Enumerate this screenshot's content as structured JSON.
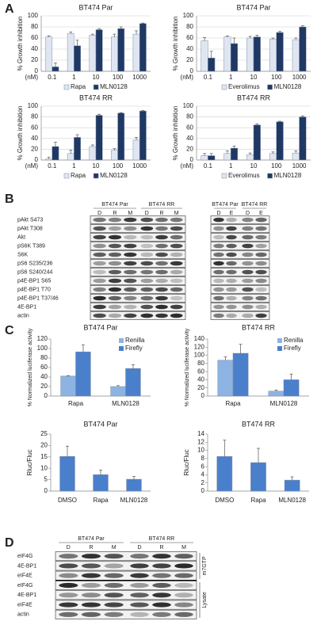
{
  "panel_labels": [
    "A",
    "B",
    "C",
    "D"
  ],
  "chart_data": [
    {
      "type": "bar",
      "title": "BT474 Par",
      "y_label": "% Growth inhibition",
      "x_unit_label": "(nM)",
      "categories": [
        "0.1",
        "1",
        "10",
        "100",
        "1000"
      ],
      "ylim": [
        0,
        100
      ],
      "yticks": [
        0,
        20,
        40,
        60,
        80,
        100
      ],
      "grid": true,
      "legend": "bottom",
      "series": [
        {
          "name": "Rapa",
          "color": "#dfe6f2",
          "values": [
            62,
            68,
            65,
            62,
            67
          ],
          "errors": [
            2,
            3,
            2,
            5,
            6
          ]
        },
        {
          "name": "MLN0128",
          "color": "#1f3864",
          "values": [
            8,
            46,
            75,
            77,
            86
          ],
          "errors": [
            7,
            10,
            2,
            3,
            1
          ]
        }
      ]
    },
    {
      "type": "bar",
      "title": "BT474 Par",
      "y_label": "% Growth inhibition",
      "x_unit_label": "(nM)",
      "categories": [
        "0.1",
        "1",
        "10",
        "100",
        "1000"
      ],
      "ylim": [
        0,
        100
      ],
      "yticks": [
        0,
        20,
        40,
        60,
        80,
        100
      ],
      "grid": true,
      "legend": "bottom",
      "series": [
        {
          "name": "Everolimus",
          "color": "#dfe6f2",
          "values": [
            55,
            62,
            60,
            58,
            57
          ],
          "errors": [
            6,
            2,
            3,
            2,
            3
          ]
        },
        {
          "name": "MLN0128",
          "color": "#1f3864",
          "values": [
            24,
            50,
            62,
            70,
            80
          ],
          "errors": [
            12,
            10,
            3,
            2,
            2
          ]
        }
      ]
    },
    {
      "type": "bar",
      "title": "BT474 RR",
      "y_label": "% Growth inhibition",
      "x_unit_label": "(nM)",
      "categories": [
        "0.1",
        "1",
        "10",
        "100",
        "1000"
      ],
      "ylim": [
        0,
        100
      ],
      "yticks": [
        0,
        20,
        40,
        60,
        80,
        100
      ],
      "grid": true,
      "legend": "bottom",
      "series": [
        {
          "name": "Rapa",
          "color": "#dfe6f2",
          "values": [
            2,
            12,
            25,
            18,
            37
          ],
          "errors": [
            3,
            6,
            3,
            3,
            5
          ]
        },
        {
          "name": "MLN0128",
          "color": "#1f3864",
          "values": [
            25,
            42,
            83,
            87,
            91
          ],
          "errors": [
            8,
            5,
            2,
            1,
            1
          ]
        }
      ]
    },
    {
      "type": "bar",
      "title": "BT474 RR",
      "y_label": "% Growth inhibition",
      "x_unit_label": "(nM)",
      "categories": [
        "0.1",
        "1",
        "10",
        "100",
        "1000"
      ],
      "ylim": [
        0,
        100
      ],
      "yticks": [
        0,
        20,
        40,
        60,
        80,
        100
      ],
      "grid": true,
      "legend": "bottom",
      "series": [
        {
          "name": "Everolimus",
          "color": "#dfe6f2",
          "values": [
            8,
            12,
            10,
            12,
            13
          ],
          "errors": [
            4,
            5,
            3,
            3,
            4
          ]
        },
        {
          "name": "MLN0128",
          "color": "#1f3864",
          "values": [
            8,
            22,
            65,
            71,
            80
          ],
          "errors": [
            4,
            4,
            2,
            1,
            2
          ]
        }
      ]
    },
    {
      "type": "bar",
      "title": "BT474 Par",
      "y_label": "% Normalized luciferase activity",
      "categories": [
        "Rapa",
        "MLN0128"
      ],
      "ylim": [
        0,
        120
      ],
      "yticks": [
        0,
        20,
        40,
        60,
        80,
        100,
        120
      ],
      "grid": false,
      "legend": "upper right",
      "series": [
        {
          "name": "Renilla",
          "color": "#8db3e2",
          "values": [
            42,
            20
          ],
          "errors": [
            1,
            2
          ]
        },
        {
          "name": "Firefly",
          "color": "#4a7fcb",
          "values": [
            93,
            58
          ],
          "errors": [
            15,
            8
          ]
        }
      ]
    },
    {
      "type": "bar",
      "title": "BT474 RR",
      "y_label": "% Normalized luciferase activity",
      "categories": [
        "Rapa",
        "MLN0128"
      ],
      "ylim": [
        0,
        140
      ],
      "yticks": [
        0,
        20,
        40,
        60,
        80,
        100,
        120,
        140
      ],
      "grid": false,
      "legend": "upper right",
      "series": [
        {
          "name": "Renilla",
          "color": "#8db3e2",
          "values": [
            88,
            12
          ],
          "errors": [
            8,
            3
          ]
        },
        {
          "name": "Firefly",
          "color": "#4a7fcb",
          "values": [
            105,
            40
          ],
          "errors": [
            22,
            14
          ]
        }
      ]
    },
    {
      "type": "bar",
      "title": "BT474 Par",
      "y_label": "Rluc/Fluc",
      "categories": [
        "DMSO",
        "Rapa",
        "MLN0128"
      ],
      "ylim": [
        0,
        25
      ],
      "yticks": [
        0,
        5,
        10,
        15,
        20,
        25
      ],
      "grid": false,
      "color": "#4a7fcb",
      "values": [
        15.2,
        7.2,
        5.2
      ],
      "errors": [
        4.5,
        2,
        1.2
      ]
    },
    {
      "type": "bar",
      "title": "BT474 RR",
      "y_label": "Rluc/Fluc",
      "categories": [
        "DMSO",
        "Rapa",
        "MLN0128"
      ],
      "ylim": [
        0,
        14
      ],
      "yticks": [
        0,
        2,
        4,
        6,
        8,
        10,
        12,
        14
      ],
      "grid": false,
      "color": "#4a7fcb",
      "values": [
        8.5,
        7,
        2.7
      ],
      "errors": [
        4,
        3.5,
        0.8
      ]
    }
  ],
  "blot_b": {
    "groups": [
      "BT474 Par",
      "BT474 RR",
      "BT474 Par",
      "BT474 RR"
    ],
    "lanes": [
      [
        "D",
        "R",
        "M"
      ],
      [
        "D",
        "R",
        "M"
      ],
      [
        "D",
        "E"
      ],
      [
        "D",
        "E"
      ]
    ],
    "rows": [
      "pAkt S473",
      "pAkt T308",
      "Akt",
      "pS6K T389",
      "S6K",
      "pS6 S235/236",
      "pS6 S240/244",
      "p4E-BP1 S65",
      "p4E-BP1 T70",
      "p4E-BP1 T37/46",
      "4E-BP1",
      "actin"
    ]
  },
  "blot_d": {
    "groups": [
      "BT474 Par",
      "BT474 RR"
    ],
    "lanes": [
      [
        "D",
        "R",
        "M"
      ],
      [
        "D",
        "R",
        "M"
      ]
    ],
    "rows": [
      "eIF4G",
      "4E-BP1",
      "eIF4E",
      "eIF4G",
      "4E-BP1",
      "eIF4E",
      "actin"
    ],
    "sections": [
      "m7GTP",
      "Lysate"
    ]
  }
}
